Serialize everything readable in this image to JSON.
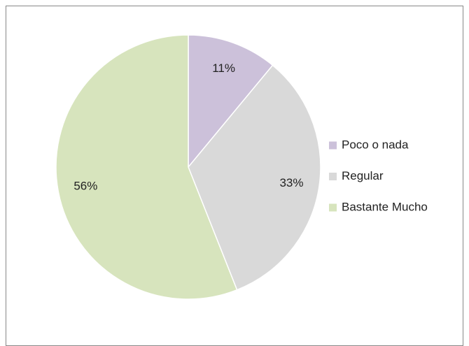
{
  "chart_data": {
    "type": "pie",
    "categories": [
      "Poco o nada",
      "Regular",
      "Bastante Mucho"
    ],
    "values": [
      11,
      33,
      56
    ],
    "value_labels": [
      "11%",
      "33%",
      "56%"
    ],
    "colors": [
      "#ccc1da",
      "#d9d9d9",
      "#d7e4bd"
    ],
    "legend": "right"
  }
}
